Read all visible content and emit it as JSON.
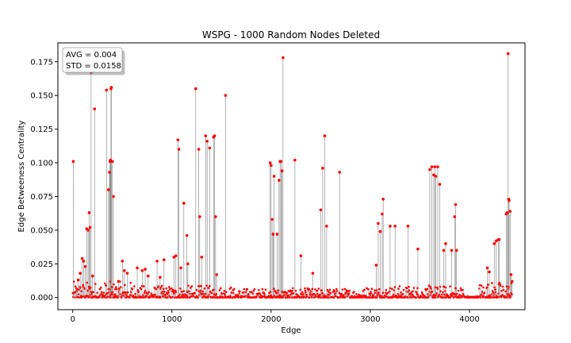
{
  "chart_data": {
    "type": "scatter",
    "title": "WSPG - 1000 Random Nodes Deleted",
    "xlabel": "Edge",
    "ylabel": "Edge Betweeness Centrality",
    "xlim": [
      -150,
      4560
    ],
    "ylim": [
      -0.009,
      0.189
    ],
    "x_ticks": [
      0,
      1000,
      2000,
      3000,
      4000
    ],
    "y_ticks": [
      0.0,
      0.025,
      0.05,
      0.075,
      0.1,
      0.125,
      0.15,
      0.175
    ],
    "x_tick_labels": [
      "0",
      "1000",
      "2000",
      "3000",
      "4000"
    ],
    "y_tick_labels": [
      "0.000",
      "0.025",
      "0.050",
      "0.075",
      "0.100",
      "0.125",
      "0.150",
      "0.175"
    ],
    "grid": false,
    "legend": "none",
    "marker_color": "#ff0000",
    "stem_color": "#808080",
    "annotation": {
      "position": "top-left",
      "lines": [
        "AVG = 0.004",
        "STD = 0.0158"
      ]
    },
    "series": [
      {
        "x": [
          5,
          55,
          75,
          95,
          110,
          125,
          140,
          155,
          165,
          175,
          185,
          200,
          220,
          340,
          360,
          370,
          375,
          380,
          385,
          390,
          400,
          410,
          425,
          460,
          500,
          520,
          550,
          650,
          700,
          730,
          760,
          850,
          880,
          920,
          1020,
          1040,
          1060,
          1070,
          1090,
          1120,
          1150,
          1160,
          1240,
          1270,
          1280,
          1300,
          1340,
          1355,
          1380,
          1420,
          1430,
          1440,
          1450,
          1540,
          1990,
          2000,
          2010,
          2020,
          2030,
          2060,
          2080,
          2090,
          2100,
          2110,
          2120,
          2240,
          2300,
          2420,
          2500,
          2520,
          2540,
          2560,
          2690,
          3060,
          3080,
          3100,
          3120,
          3130,
          3200,
          3250,
          3380,
          3480,
          3600,
          3620,
          3640,
          3650,
          3660,
          3680,
          3700,
          3740,
          3760,
          3820,
          3850,
          3860,
          3870,
          4180,
          4200,
          4250,
          4270,
          4290,
          4300,
          4370,
          4380,
          4390,
          4395,
          4400,
          4410,
          4420,
          4430
        ],
        "y": [
          0.101,
          0.013,
          0.018,
          0.029,
          0.027,
          0.023,
          0.051,
          0.05,
          0.063,
          0.052,
          0.167,
          0.016,
          0.14,
          0.154,
          0.08,
          0.093,
          0.101,
          0.102,
          0.155,
          0.156,
          0.101,
          0.075,
          0.002,
          0.012,
          0.027,
          0.02,
          0.018,
          0.022,
          0.02,
          0.021,
          0.016,
          0.027,
          0.015,
          0.028,
          0.03,
          0.031,
          0.117,
          0.11,
          0.022,
          0.07,
          0.046,
          0.025,
          0.155,
          0.11,
          0.06,
          0.03,
          0.12,
          0.116,
          0.111,
          0.119,
          0.12,
          0.06,
          0.017,
          0.15,
          0.1,
          0.098,
          0.058,
          0.047,
          0.09,
          0.047,
          0.087,
          0.101,
          0.101,
          0.094,
          0.178,
          0.102,
          0.031,
          0.018,
          0.065,
          0.096,
          0.12,
          0.053,
          0.093,
          0.024,
          0.055,
          0.049,
          0.062,
          0.073,
          0.053,
          0.053,
          0.053,
          0.036,
          0.095,
          0.097,
          0.091,
          0.097,
          0.09,
          0.097,
          0.084,
          0.035,
          0.04,
          0.035,
          0.06,
          0.069,
          0.035,
          0.022,
          0.019,
          0.04,
          0.042,
          0.043,
          0.043,
          0.062,
          0.063,
          0.181,
          0.073,
          0.072,
          0.064,
          0.017,
          0.012
        ]
      }
    ]
  }
}
